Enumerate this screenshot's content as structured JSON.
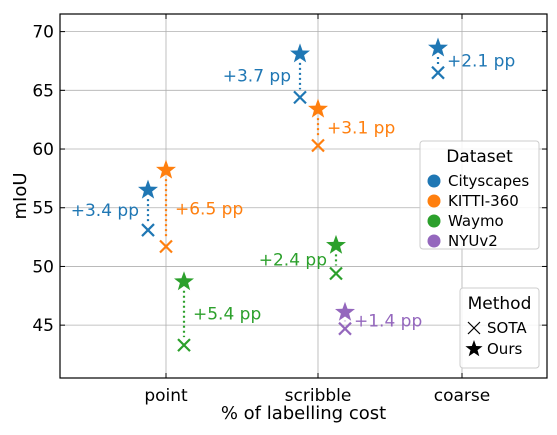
{
  "chart_data": {
    "type": "scatter",
    "categories": [
      "point",
      "scribble",
      "coarse"
    ],
    "xlabel": "% of labelling cost",
    "ylabel": "mIoU",
    "ylim": [
      40.5,
      71.5
    ],
    "yticks": [
      45,
      50,
      55,
      60,
      65,
      70
    ],
    "grid": true,
    "datasets": [
      {
        "name": "Cityscapes",
        "color": "#1f77b4",
        "points": [
          {
            "category": "point",
            "sota": 53.1,
            "ours": 56.5,
            "gain": "+3.4 pp"
          },
          {
            "category": "scribble",
            "sota": 64.4,
            "ours": 68.1,
            "gain": "+3.7 pp"
          },
          {
            "category": "coarse",
            "sota": 66.5,
            "ours": 68.6,
            "gain": "+2.1 pp"
          }
        ]
      },
      {
        "name": "KITTI-360",
        "color": "#ff7f0e",
        "points": [
          {
            "category": "point",
            "sota": 51.7,
            "ours": 58.2,
            "gain": "+6.5 pp"
          },
          {
            "category": "scribble",
            "sota": 60.3,
            "ours": 63.4,
            "gain": "+3.1 pp"
          }
        ]
      },
      {
        "name": "Waymo",
        "color": "#2ca02c",
        "points": [
          {
            "category": "point",
            "sota": 43.3,
            "ours": 48.7,
            "gain": "+5.4 pp"
          },
          {
            "category": "scribble",
            "sota": 49.4,
            "ours": 51.8,
            "gain": "+2.4 pp"
          }
        ]
      },
      {
        "name": "NYUv2",
        "color": "#9467bd",
        "points": [
          {
            "category": "scribble",
            "sota": 44.7,
            "ours": 46.1,
            "gain": "+1.4 pp"
          }
        ]
      }
    ],
    "legend_dataset": {
      "title": "Dataset",
      "placement": "right"
    },
    "legend_method": {
      "title": "Method",
      "placement": "bottom-right",
      "items": [
        {
          "label": "SOTA",
          "marker": "x"
        },
        {
          "label": "Ours",
          "marker": "star"
        }
      ]
    }
  }
}
